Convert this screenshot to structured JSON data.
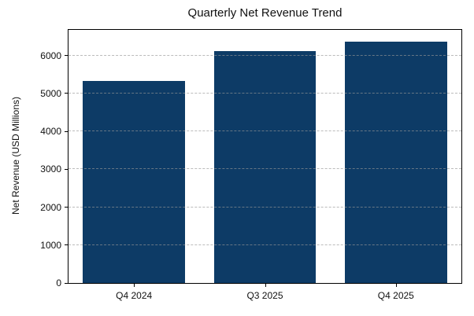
{
  "chart_data": {
    "type": "bar",
    "title": "Quarterly Net Revenue Trend",
    "ylabel": "Net Revenue (USD Millions)",
    "xlabel": "",
    "categories": [
      "Q4 2024",
      "Q3 2025",
      "Q4 2025"
    ],
    "values": [
      5330,
      6130,
      6370
    ],
    "yticks": [
      0,
      1000,
      2000,
      3000,
      4000,
      5000,
      6000
    ],
    "ylim": [
      0,
      6680
    ],
    "bar_color": "#0d3b66",
    "grid": "horizontal-dashed-over-bars",
    "legend": "none",
    "background_color": "#ffffff"
  }
}
